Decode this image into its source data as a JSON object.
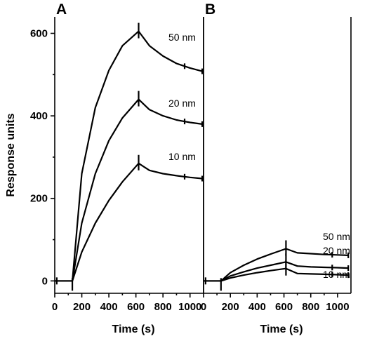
{
  "chart_data": [
    {
      "panel": "A",
      "type": "line",
      "xlabel": "Time (s)",
      "ylabel": "Response units",
      "xlim": [
        0,
        1100
      ],
      "ylim": [
        -30,
        640
      ],
      "xticks": [
        0,
        200,
        400,
        600,
        800,
        1000
      ],
      "yticks": [
        0,
        200,
        400,
        600
      ],
      "baseline": {
        "x": [
          0,
          130
        ],
        "y": 0
      },
      "series": [
        {
          "name": "50 nm",
          "x": [
            130,
            200,
            300,
            400,
            500,
            620,
            700,
            800,
            900,
            1000,
            1090
          ],
          "y": [
            0,
            260,
            420,
            510,
            570,
            605,
            570,
            545,
            527,
            516,
            508
          ]
        },
        {
          "name": "20 nm",
          "x": [
            130,
            200,
            300,
            400,
            500,
            620,
            700,
            800,
            900,
            1000,
            1090
          ],
          "y": [
            0,
            140,
            260,
            340,
            395,
            440,
            415,
            400,
            390,
            384,
            380
          ]
        },
        {
          "name": "10 nm",
          "x": [
            130,
            200,
            300,
            400,
            500,
            620,
            700,
            800,
            900,
            1000,
            1090
          ],
          "y": [
            0,
            70,
            140,
            195,
            240,
            285,
            268,
            260,
            255,
            251,
            248
          ]
        }
      ]
    },
    {
      "panel": "B",
      "type": "line",
      "xlabel": "Time (s)",
      "ylabel": "",
      "xlim": [
        0,
        1100
      ],
      "ylim": [
        -30,
        640
      ],
      "xticks": [
        0,
        200,
        400,
        600,
        800,
        1000
      ],
      "yticks": [],
      "baseline": {
        "x": [
          0,
          130
        ],
        "y": 0
      },
      "series": [
        {
          "name": "50 nm",
          "x": [
            130,
            200,
            300,
            400,
            500,
            615,
            700,
            800,
            900,
            1000,
            1080
          ],
          "y": [
            0,
            20,
            38,
            53,
            65,
            78,
            68,
            66,
            64,
            63,
            62
          ]
        },
        {
          "name": "20 nm",
          "x": [
            130,
            200,
            300,
            400,
            500,
            615,
            700,
            800,
            900,
            1000,
            1080
          ],
          "y": [
            0,
            12,
            22,
            31,
            38,
            46,
            36,
            34,
            33,
            32,
            31
          ]
        },
        {
          "name": "10 nm",
          "x": [
            130,
            200,
            300,
            400,
            500,
            615,
            700,
            800,
            900,
            1000,
            1080
          ],
          "y": [
            0,
            7,
            14,
            20,
            25,
            30,
            18,
            17,
            16,
            15,
            14
          ]
        }
      ]
    }
  ]
}
